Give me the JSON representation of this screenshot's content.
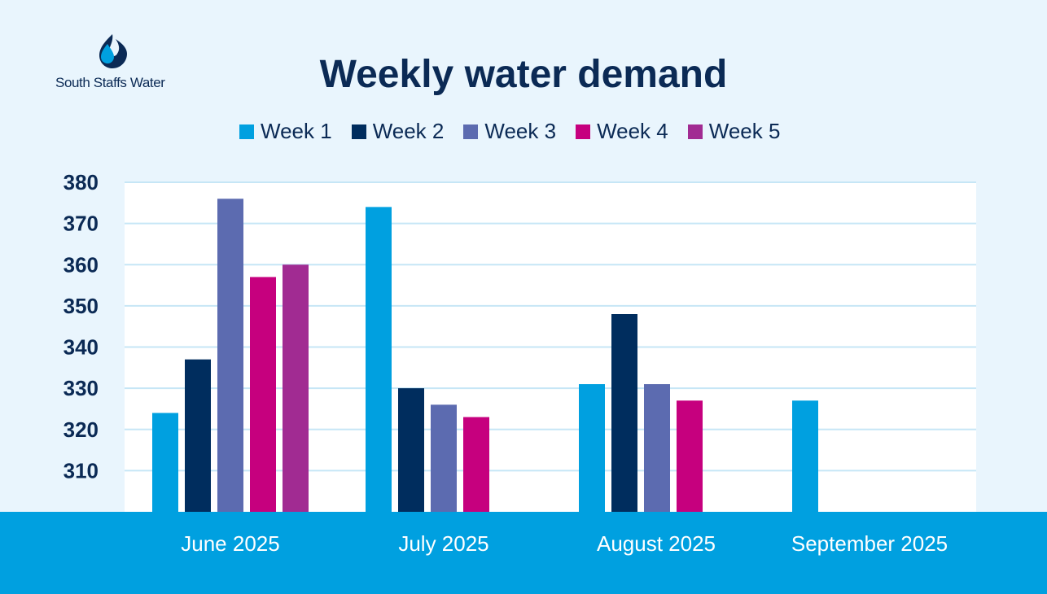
{
  "brand": {
    "name": "South Staffs Water"
  },
  "colors": {
    "background": "#e9f5fd",
    "footer": "#00a0e0",
    "grid": "#c6e6f6",
    "text": "#0b2a55"
  },
  "chart_data": {
    "type": "bar",
    "title": "Weekly water demand",
    "xlabel": "",
    "ylabel": "",
    "ylim": [
      300,
      380
    ],
    "yticks": [
      310,
      320,
      330,
      340,
      350,
      360,
      370,
      380
    ],
    "categories": [
      "June 2025",
      "July 2025",
      "August 2025",
      "September 2025"
    ],
    "series": [
      {
        "name": "Week 1",
        "color": "#00a0e0",
        "values": [
          324,
          374,
          331,
          327
        ]
      },
      {
        "name": "Week 2",
        "color": "#002d5e",
        "values": [
          337,
          330,
          348,
          null
        ]
      },
      {
        "name": "Week 3",
        "color": "#5c6bb0",
        "values": [
          376,
          326,
          331,
          null
        ]
      },
      {
        "name": "Week 4",
        "color": "#c6007e",
        "values": [
          357,
          323,
          327,
          null
        ]
      },
      {
        "name": "Week 5",
        "color": "#a12b92",
        "values": [
          360,
          null,
          null,
          null
        ]
      }
    ],
    "grid": true,
    "legend": "top-center"
  }
}
